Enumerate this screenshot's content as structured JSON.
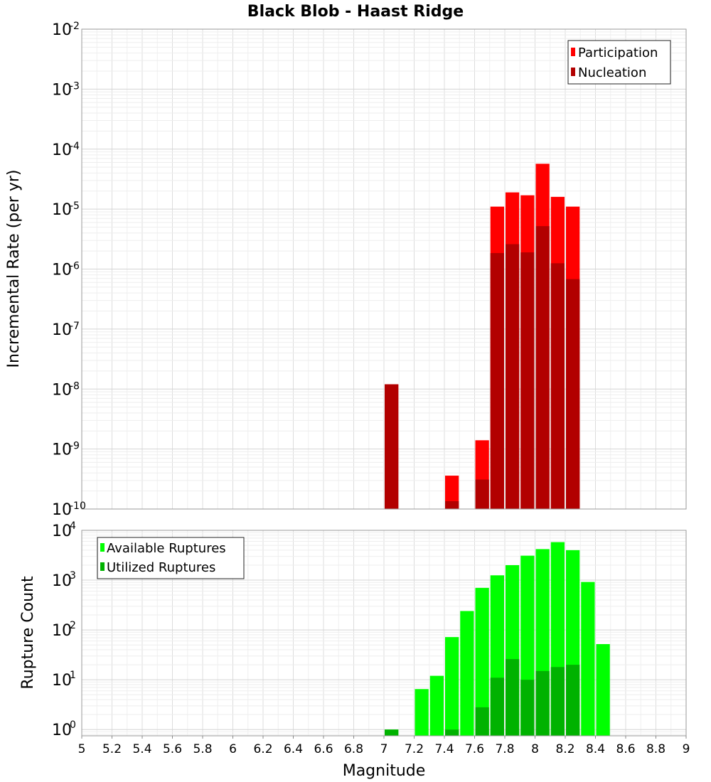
{
  "title": "Black Blob - Haast Ridge",
  "chart_data": [
    {
      "type": "bar",
      "name": "rate-panel",
      "ylabel": "Incremental Rate (per yr)",
      "yscale": "log",
      "ylim": [
        1e-10,
        0.01
      ],
      "y_ticks": [
        {
          "base": "10",
          "exp": "-10",
          "value": 1e-10
        },
        {
          "base": "10",
          "exp": "-9",
          "value": 1e-09
        },
        {
          "base": "10",
          "exp": "-8",
          "value": 1e-08
        },
        {
          "base": "10",
          "exp": "-7",
          "value": 1e-07
        },
        {
          "base": "10",
          "exp": "-6",
          "value": 1e-06
        },
        {
          "base": "10",
          "exp": "-5",
          "value": 1e-05
        },
        {
          "base": "10",
          "exp": "-4",
          "value": 0.0001
        },
        {
          "base": "10",
          "exp": "-3",
          "value": 0.001
        },
        {
          "base": "10",
          "exp": "-2",
          "value": 0.01
        }
      ],
      "x": [
        7.05,
        7.45,
        7.65,
        7.75,
        7.85,
        7.95,
        8.05,
        8.15,
        8.25
      ],
      "series": [
        {
          "name": "Participation",
          "color": "#ff0000",
          "values": [
            1.2e-08,
            3.6e-10,
            1.4e-09,
            1.1e-05,
            1.9e-05,
            1.7e-05,
            5.7e-05,
            1.6e-05,
            1.1e-05
          ]
        },
        {
          "name": "Nucleation",
          "color": "#b20000",
          "values": [
            1.2e-08,
            1.35e-10,
            3.1e-10,
            1.85e-06,
            2.6e-06,
            1.9e-06,
            5.2e-06,
            1.25e-06,
            6.8e-07
          ]
        }
      ],
      "legend": "top-right",
      "grid": true
    },
    {
      "type": "bar",
      "name": "count-panel",
      "xlabel": "Magnitude",
      "ylabel": "Rupture Count",
      "yscale": "log",
      "ylim": [
        0.75,
        10000
      ],
      "y_ticks": [
        {
          "base": "10",
          "exp": "0",
          "value": 1
        },
        {
          "base": "10",
          "exp": "1",
          "value": 10
        },
        {
          "base": "10",
          "exp": "2",
          "value": 100
        },
        {
          "base": "10",
          "exp": "3",
          "value": 1000
        },
        {
          "base": "10",
          "exp": "4",
          "value": 10000
        }
      ],
      "xlim": [
        5,
        9
      ],
      "x_ticks": [
        "5",
        "5.2",
        "5.4",
        "5.6",
        "5.8",
        "6",
        "6.2",
        "6.4",
        "6.6",
        "6.8",
        "7",
        "7.2",
        "7.4",
        "7.6",
        "7.8",
        "8",
        "8.2",
        "8.4",
        "8.6",
        "8.8",
        "9"
      ],
      "x": [
        7.05,
        7.25,
        7.35,
        7.45,
        7.55,
        7.65,
        7.75,
        7.85,
        7.95,
        8.05,
        8.15,
        8.25,
        8.35,
        8.45
      ],
      "series": [
        {
          "name": "Available Ruptures",
          "color": "#00ff00",
          "values": [
            1,
            6.5,
            12,
            72,
            240,
            700,
            1250,
            2000,
            3100,
            4200,
            5800,
            4000,
            920,
            52
          ]
        },
        {
          "name": "Utilized Ruptures",
          "color": "#00b200",
          "values": [
            1,
            0,
            0,
            1,
            0,
            2.8,
            11,
            26,
            10,
            15,
            18,
            20,
            0,
            0
          ]
        }
      ],
      "legend": "top-left",
      "grid": true
    }
  ]
}
